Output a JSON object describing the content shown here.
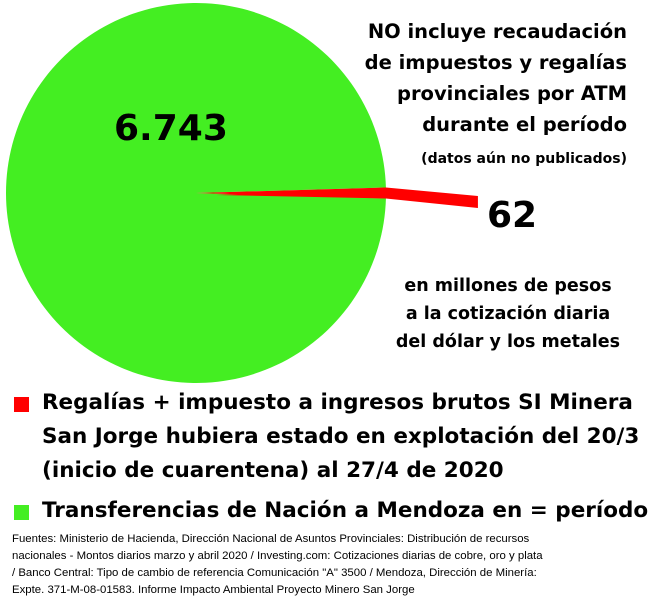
{
  "chart_data": {
    "type": "pie",
    "slices": [
      {
        "name": "Transferencias de Nación a Mendoza en = período",
        "value": 6743,
        "label": "6.743",
        "color": "#44ee22"
      },
      {
        "name": "Regalías + impuesto a ingresos brutos SI Minera San Jorge hubiera estado en explotación del 20/3 (inicio de cuarentena) al 27/4 de 2020",
        "value": 62,
        "label": "62",
        "color": "#ff0000"
      }
    ],
    "annotations": {
      "note_lines": [
        "NO incluye recaudación",
        "de impuestos y regalías",
        "provinciales por ATM",
        "durante el período"
      ],
      "note_sub": "(datos aún no publicados)",
      "units_lines": [
        "en millones de pesos",
        "a la cotización diaria",
        "del dólar y los metales"
      ]
    },
    "legend": {
      "placement": "bottom",
      "items": [
        {
          "color": "#ff0000",
          "lines": [
            "Regalías + impuesto a ingresos brutos SI Minera",
            "San Jorge hubiera estado en explotación del 20/3",
            "(inicio de cuarentena) al 27/4 de 2020"
          ]
        },
        {
          "color": "#44ee22",
          "lines": [
            "Transferencias de Nación a Mendoza en = período"
          ]
        }
      ]
    },
    "sources_lines": [
      "Fuentes: Ministerio de Hacienda, Dirección Nacional de Asuntos Provinciales: Distribución de recursos",
      "nacionales - Montos diarios marzo y abril 2020  / Investing.com: Cotizaciones diarias de cobre, oro y plata",
      "/ Banco Central: Tipo de cambio de referencia Comunicación \"A\" 3500 / Mendoza, Dirección de Minería:",
      "Expte. 371-M-08-01583.  Informe Impacto Ambiental Proyecto Minero San Jorge"
    ]
  }
}
